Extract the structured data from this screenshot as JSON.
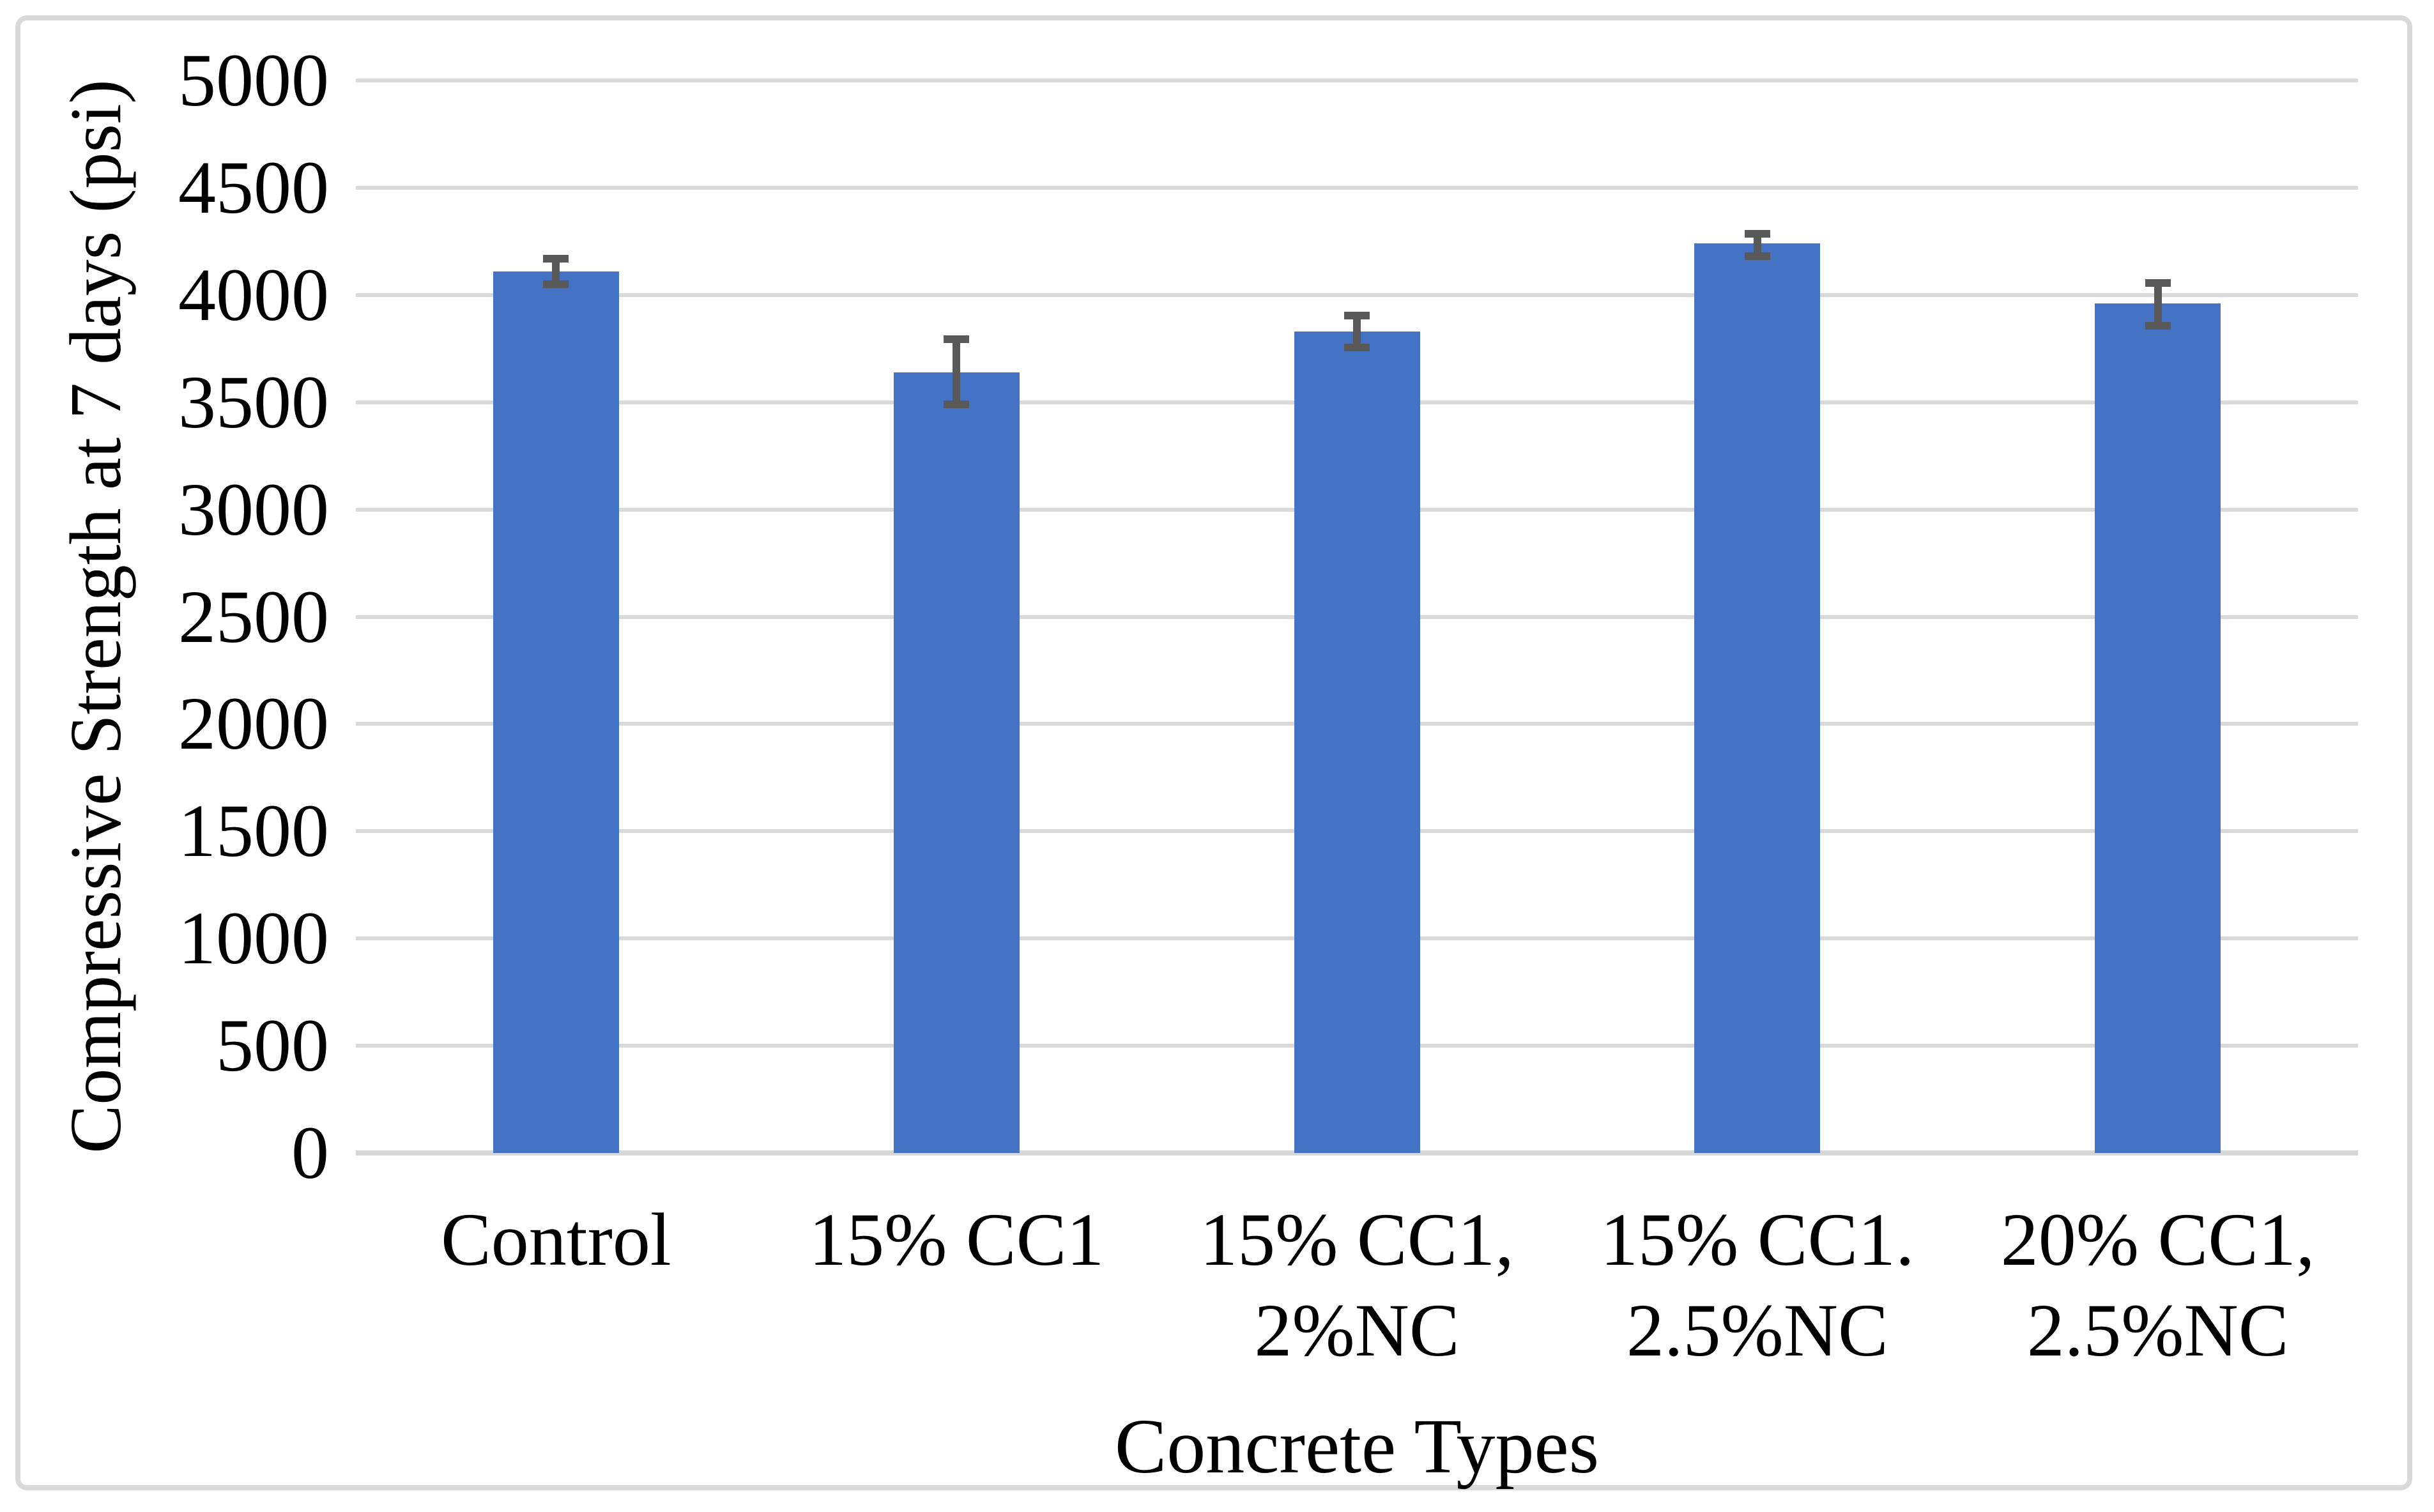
{
  "chart_data": {
    "type": "bar",
    "title": "",
    "xlabel": "Concrete Types",
    "ylabel": "Compressive Strength at 7 days (psi)",
    "categories": [
      "Control",
      "15% CC1",
      "15% CC1,\n2%NC",
      "15% CC1.\n2.5%NC",
      "20% CC1,\n2.5%NC"
    ],
    "values": [
      4110,
      3640,
      3830,
      4240,
      3960
    ],
    "error_low": [
      4050,
      3490,
      3755,
      4180,
      3855
    ],
    "error_high": [
      4170,
      3795,
      3905,
      4285,
      4055
    ],
    "yticks": [
      "0",
      "500",
      "1000",
      "1500",
      "2000",
      "2500",
      "3000",
      "3500",
      "4000",
      "4500",
      "5000"
    ],
    "ylim": [
      0,
      5000
    ],
    "ytick_step": 500,
    "grid": "horizontal",
    "legend_position": "none",
    "colors": {
      "bar": "#4472C4",
      "error_bar": "#595959",
      "gridline": "#D9D9D9",
      "axis_line": "#D6D6D6",
      "text": "#000000",
      "background": "#FFFFFF",
      "border": "#D9D9D9"
    }
  }
}
